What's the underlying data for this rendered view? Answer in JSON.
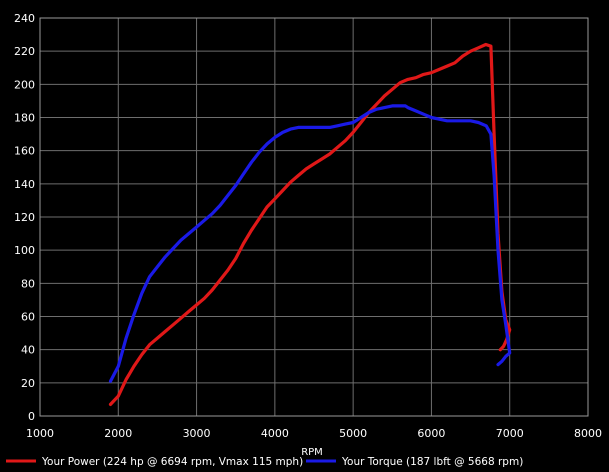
{
  "chart_data": {
    "type": "line",
    "xlabel": "RPM",
    "ylabel": "",
    "xlim": [
      1000,
      8000
    ],
    "ylim": [
      0,
      240
    ],
    "xticks": [
      1000,
      2000,
      3000,
      4000,
      5000,
      6000,
      7000,
      8000
    ],
    "yticks": [
      0,
      20,
      40,
      60,
      80,
      100,
      120,
      140,
      160,
      180,
      200,
      220,
      240
    ],
    "grid": true,
    "legend_position": "bottom",
    "series": [
      {
        "name": "Your Power (224 hp @ 6694 rpm, Vmax 115 mph)",
        "color": "#e01818",
        "points": [
          [
            1900,
            7
          ],
          [
            2000,
            12
          ],
          [
            2100,
            22
          ],
          [
            2200,
            30
          ],
          [
            2300,
            37
          ],
          [
            2400,
            43
          ],
          [
            2500,
            47
          ],
          [
            2600,
            51
          ],
          [
            2700,
            55
          ],
          [
            2800,
            59
          ],
          [
            2900,
            63
          ],
          [
            3000,
            67
          ],
          [
            3100,
            71
          ],
          [
            3200,
            76
          ],
          [
            3300,
            82
          ],
          [
            3400,
            88
          ],
          [
            3500,
            95
          ],
          [
            3600,
            104
          ],
          [
            3700,
            112
          ],
          [
            3800,
            119
          ],
          [
            3900,
            126
          ],
          [
            4000,
            131
          ],
          [
            4100,
            136
          ],
          [
            4200,
            141
          ],
          [
            4300,
            145
          ],
          [
            4400,
            149
          ],
          [
            4500,
            152
          ],
          [
            4600,
            155
          ],
          [
            4700,
            158
          ],
          [
            4800,
            162
          ],
          [
            4900,
            166
          ],
          [
            5000,
            171
          ],
          [
            5100,
            177
          ],
          [
            5200,
            183
          ],
          [
            5300,
            188
          ],
          [
            5400,
            193
          ],
          [
            5500,
            197
          ],
          [
            5600,
            201
          ],
          [
            5700,
            203
          ],
          [
            5800,
            204
          ],
          [
            5900,
            206
          ],
          [
            6000,
            207
          ],
          [
            6100,
            209
          ],
          [
            6200,
            211
          ],
          [
            6300,
            213
          ],
          [
            6400,
            217
          ],
          [
            6500,
            220
          ],
          [
            6600,
            222
          ],
          [
            6694,
            224
          ],
          [
            6760,
            223
          ],
          [
            6800,
            170
          ],
          [
            6850,
            110
          ],
          [
            6900,
            75
          ],
          [
            6950,
            58
          ],
          [
            7000,
            52
          ],
          [
            6960,
            46
          ],
          [
            6920,
            42
          ],
          [
            6880,
            40
          ]
        ]
      },
      {
        "name": "Your Torque (187 lbft @ 5668 rpm)",
        "color": "#1a1ae6",
        "points": [
          [
            1900,
            21
          ],
          [
            2000,
            30
          ],
          [
            2100,
            47
          ],
          [
            2200,
            61
          ],
          [
            2300,
            74
          ],
          [
            2400,
            84
          ],
          [
            2500,
            90
          ],
          [
            2600,
            96
          ],
          [
            2700,
            101
          ],
          [
            2800,
            106
          ],
          [
            2900,
            110
          ],
          [
            3000,
            114
          ],
          [
            3100,
            118
          ],
          [
            3200,
            122
          ],
          [
            3300,
            127
          ],
          [
            3400,
            133
          ],
          [
            3500,
            139
          ],
          [
            3600,
            146
          ],
          [
            3700,
            153
          ],
          [
            3800,
            159
          ],
          [
            3900,
            164
          ],
          [
            4000,
            168
          ],
          [
            4100,
            171
          ],
          [
            4200,
            173
          ],
          [
            4300,
            174
          ],
          [
            4400,
            174
          ],
          [
            4500,
            174
          ],
          [
            4600,
            174
          ],
          [
            4700,
            174
          ],
          [
            4800,
            175
          ],
          [
            4900,
            176
          ],
          [
            5000,
            177
          ],
          [
            5100,
            180
          ],
          [
            5200,
            183
          ],
          [
            5300,
            185
          ],
          [
            5400,
            186
          ],
          [
            5500,
            187
          ],
          [
            5600,
            187
          ],
          [
            5668,
            187
          ],
          [
            5700,
            186
          ],
          [
            5800,
            184
          ],
          [
            5900,
            182
          ],
          [
            6000,
            180
          ],
          [
            6100,
            179
          ],
          [
            6200,
            178
          ],
          [
            6300,
            178
          ],
          [
            6400,
            178
          ],
          [
            6500,
            178
          ],
          [
            6600,
            177
          ],
          [
            6700,
            175
          ],
          [
            6760,
            170
          ],
          [
            6800,
            145
          ],
          [
            6850,
            100
          ],
          [
            6900,
            70
          ],
          [
            6950,
            55
          ],
          [
            7000,
            38
          ],
          [
            6950,
            36
          ],
          [
            6900,
            33
          ],
          [
            6850,
            31
          ]
        ]
      }
    ]
  }
}
